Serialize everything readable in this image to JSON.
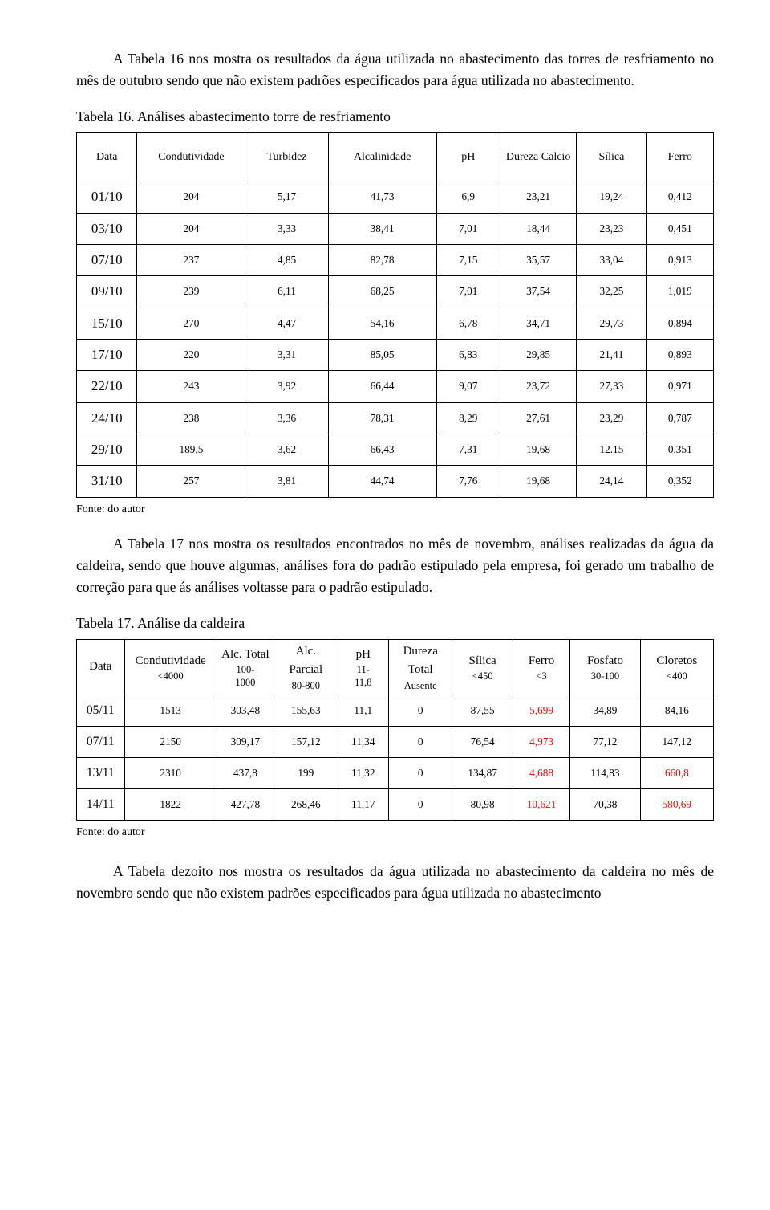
{
  "p1": "A Tabela 16 nos mostra os resultados da água utilizada no abastecimento das torres de resfriamento no mês de outubro sendo que não existem padrões especificados para água utilizada no abastecimento.",
  "cap16": "Tabela 16. Análises abastecimento torre de resfriamento",
  "t16": {
    "h": {
      "data": "Data",
      "cond": "Condutividade",
      "turb": "Turbidez",
      "alc": "Alcalinidade",
      "ph": "pH",
      "dur": "Dureza Calcio",
      "sil": "Sílica",
      "fer": "Ferro"
    },
    "rows": [
      {
        "d": "01/10",
        "c": "204",
        "t": "5,17",
        "a": "41,73",
        "p": "6,9",
        "du": "23,21",
        "s": "19,24",
        "f": "0,412"
      },
      {
        "d": "03/10",
        "c": "204",
        "t": "3,33",
        "a": "38,41",
        "p": "7,01",
        "du": "18,44",
        "s": "23,23",
        "f": "0,451"
      },
      {
        "d": "07/10",
        "c": "237",
        "t": "4,85",
        "a": "82,78",
        "p": "7,15",
        "du": "35,57",
        "s": "33,04",
        "f": "0,913"
      },
      {
        "d": "09/10",
        "c": "239",
        "t": "6,11",
        "a": "68,25",
        "p": "7,01",
        "du": "37,54",
        "s": "32,25",
        "f": "1,019"
      },
      {
        "d": "15/10",
        "c": "270",
        "t": "4,47",
        "a": "54,16",
        "p": "6,78",
        "du": "34,71",
        "s": "29,73",
        "f": "0,894"
      },
      {
        "d": "17/10",
        "c": "220",
        "t": "3,31",
        "a": "85,05",
        "p": "6,83",
        "du": "29,85",
        "s": "21,41",
        "f": "0,893"
      },
      {
        "d": "22/10",
        "c": "243",
        "t": "3,92",
        "a": "66,44",
        "p": "9,07",
        "du": "23,72",
        "s": "27,33",
        "f": "0,971"
      },
      {
        "d": "24/10",
        "c": "238",
        "t": "3,36",
        "a": "78,31",
        "p": "8,29",
        "du": "27,61",
        "s": "23,29",
        "f": "0,787"
      },
      {
        "d": "29/10",
        "c": "189,5",
        "t": "3,62",
        "a": "66,43",
        "p": "7,31",
        "du": "19,68",
        "s": "12.15",
        "f": "0,351"
      },
      {
        "d": "31/10",
        "c": "257",
        "t": "3,81",
        "a": "44,74",
        "p": "7,76",
        "du": "19,68",
        "s": "24,14",
        "f": "0,352"
      }
    ]
  },
  "fonte": "Fonte: do autor",
  "p2": "A Tabela 17 nos mostra os resultados encontrados no mês de novembro, análises realizadas da água da caldeira, sendo que houve algumas, análises fora do padrão estipulado pela empresa, foi gerado um trabalho de correção para que ás análises voltasse para o padrão estipulado.",
  "cap17": "Tabela 17. Análise da caldeira",
  "t17": {
    "h": {
      "data": "Data",
      "cond": "Condutividade",
      "cond_s": "<4000",
      "alct": "Alc. Total",
      "alct_s1": "100-",
      "alct_s2": "1000",
      "alcp": "Alc. Parcial",
      "alcp_s": "80-800",
      "ph": "pH",
      "ph_s1": "11-",
      "ph_s2": "11,8",
      "dur": "Dureza Total",
      "dur_s": "Ausente",
      "sil": "Sílica",
      "sil_s": "<450",
      "fer": "Ferro",
      "fer_s": "<3",
      "fos": "Fosfato",
      "fos_s": "30-100",
      "clo": "Cloretos",
      "clo_s": "<400"
    },
    "rows": [
      {
        "d": "05/11",
        "c": "1513",
        "at": "303,48",
        "ap": "155,63",
        "p": "11,1",
        "du": "0",
        "s": "87,55",
        "fe": "5,699",
        "fo": "34,89",
        "cl": "84,16",
        "red": {
          "fe": true
        }
      },
      {
        "d": "07/11",
        "c": "2150",
        "at": "309,17",
        "ap": "157,12",
        "p": "11,34",
        "du": "0",
        "s": "76,54",
        "fe": "4,973",
        "fo": "77,12",
        "cl": "147,12",
        "red": {
          "fe": true
        }
      },
      {
        "d": "13/11",
        "c": "2310",
        "at": "437,8",
        "ap": "199",
        "p": "11,32",
        "du": "0",
        "s": "134,87",
        "fe": "4,688",
        "fo": "114,83",
        "cl": "660,8",
        "red": {
          "fe": true,
          "cl": true
        }
      },
      {
        "d": "14/11",
        "c": "1822",
        "at": "427,78",
        "ap": "268,46",
        "p": "11,17",
        "du": "0",
        "s": "80,98",
        "fe": "10,621",
        "fo": "70,38",
        "cl": "580,69",
        "red": {
          "fe": true,
          "cl": true
        }
      }
    ]
  },
  "p3": "A Tabela dezoito nos mostra os resultados da água utilizada no abastecimento da caldeira no mês de novembro sendo que não existem padrões especificados para água utilizada no abastecimento",
  "colors": {
    "red": "#ff0000",
    "text": "#000000",
    "bg": "#ffffff"
  }
}
